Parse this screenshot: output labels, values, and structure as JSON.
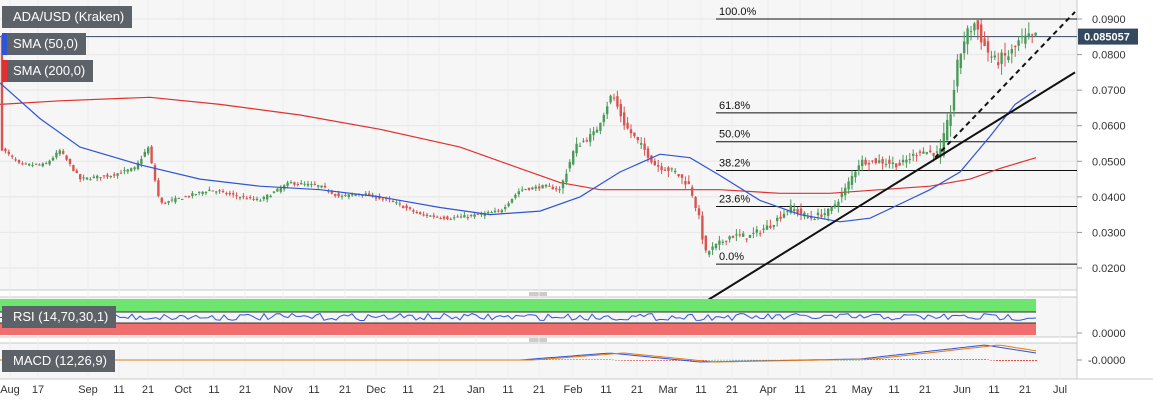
{
  "legend": {
    "main": "ADA/USD (Kraken)",
    "sma50": "SMA (50,0)",
    "sma200": "SMA (200,0)",
    "rsi": "RSI (14,70,30,1)",
    "macd": "MACD (12,26,9)"
  },
  "colors": {
    "up": "#4c9a5a",
    "down": "#d9534f",
    "sma50": "#2f54d8",
    "sma200": "#e03131",
    "current_tag": "#34485f",
    "rsi_over": "#6ee56e",
    "rsi_under": "#f06e6e",
    "label_bg": "#5d6268"
  },
  "chart_data": {
    "type": "candlestick",
    "title": "ADA/USD (Kraken)",
    "current_price": "0.085057",
    "y_ticks": [
      "0.0900",
      "0.0800",
      "0.0700",
      "0.0600",
      "0.0500",
      "0.0400",
      "0.0300",
      "0.0200"
    ],
    "ylim": [
      0.013,
      0.094
    ],
    "fib_levels": [
      {
        "label": "100.0%",
        "price": 0.09
      },
      {
        "label": "61.8%",
        "price": 0.0636
      },
      {
        "label": "50.0%",
        "price": 0.0555
      },
      {
        "label": "38.2%",
        "price": 0.0474
      },
      {
        "label": "23.6%",
        "price": 0.0373
      },
      {
        "label": "0.0%",
        "price": 0.0211
      }
    ],
    "x_ticks": [
      "Aug",
      "17",
      "Sep",
      "11",
      "21",
      "Oct",
      "11",
      "21",
      "Nov",
      "11",
      "21",
      "Dec",
      "11",
      "21",
      "Jan",
      "11",
      "21",
      "Feb",
      "11",
      "21",
      "Mar",
      "11",
      "21",
      "Apr",
      "11",
      "21",
      "May",
      "11",
      "21",
      "Jun",
      "11",
      "21",
      "Jul"
    ],
    "price_path": [
      [
        0,
        0.054
      ],
      [
        20,
        0.049
      ],
      [
        45,
        0.049
      ],
      [
        60,
        0.053
      ],
      [
        80,
        0.045
      ],
      [
        110,
        0.046
      ],
      [
        135,
        0.048
      ],
      [
        148,
        0.054
      ],
      [
        160,
        0.038
      ],
      [
        185,
        0.04
      ],
      [
        210,
        0.042
      ],
      [
        240,
        0.04
      ],
      [
        260,
        0.039
      ],
      [
        290,
        0.044
      ],
      [
        320,
        0.043
      ],
      [
        340,
        0.04
      ],
      [
        360,
        0.041
      ],
      [
        390,
        0.039
      ],
      [
        420,
        0.035
      ],
      [
        450,
        0.034
      ],
      [
        480,
        0.035
      ],
      [
        500,
        0.036
      ],
      [
        520,
        0.042
      ],
      [
        545,
        0.043
      ],
      [
        560,
        0.042
      ],
      [
        575,
        0.054
      ],
      [
        595,
        0.058
      ],
      [
        612,
        0.069
      ],
      [
        625,
        0.06
      ],
      [
        645,
        0.053
      ],
      [
        655,
        0.049
      ],
      [
        675,
        0.047
      ],
      [
        690,
        0.043
      ],
      [
        700,
        0.033
      ],
      [
        705,
        0.024
      ],
      [
        715,
        0.026
      ],
      [
        730,
        0.029
      ],
      [
        750,
        0.029
      ],
      [
        770,
        0.032
      ],
      [
        790,
        0.037
      ],
      [
        810,
        0.034
      ],
      [
        830,
        0.036
      ],
      [
        845,
        0.042
      ],
      [
        860,
        0.05
      ],
      [
        880,
        0.05
      ],
      [
        900,
        0.049
      ],
      [
        920,
        0.053
      ],
      [
        940,
        0.052
      ],
      [
        950,
        0.063
      ],
      [
        958,
        0.078
      ],
      [
        965,
        0.085
      ],
      [
        975,
        0.089
      ],
      [
        985,
        0.082
      ],
      [
        995,
        0.078
      ],
      [
        1010,
        0.08
      ],
      [
        1020,
        0.084
      ],
      [
        1036,
        0.085
      ]
    ],
    "sma50_path": [
      [
        0,
        0.072
      ],
      [
        40,
        0.062
      ],
      [
        80,
        0.054
      ],
      [
        140,
        0.049
      ],
      [
        200,
        0.045
      ],
      [
        260,
        0.043
      ],
      [
        320,
        0.042
      ],
      [
        380,
        0.04
      ],
      [
        440,
        0.037
      ],
      [
        490,
        0.035
      ],
      [
        540,
        0.036
      ],
      [
        580,
        0.04
      ],
      [
        620,
        0.047
      ],
      [
        660,
        0.052
      ],
      [
        690,
        0.051
      ],
      [
        720,
        0.046
      ],
      [
        760,
        0.039
      ],
      [
        800,
        0.035
      ],
      [
        840,
        0.033
      ],
      [
        870,
        0.034
      ],
      [
        900,
        0.038
      ],
      [
        930,
        0.042
      ],
      [
        960,
        0.047
      ],
      [
        990,
        0.057
      ],
      [
        1015,
        0.066
      ],
      [
        1036,
        0.07
      ]
    ],
    "sma200_path": [
      [
        0,
        0.066
      ],
      [
        60,
        0.067
      ],
      [
        150,
        0.068
      ],
      [
        220,
        0.066
      ],
      [
        300,
        0.063
      ],
      [
        380,
        0.059
      ],
      [
        460,
        0.054
      ],
      [
        520,
        0.048
      ],
      [
        560,
        0.044
      ],
      [
        600,
        0.042
      ],
      [
        660,
        0.042
      ],
      [
        720,
        0.042
      ],
      [
        780,
        0.041
      ],
      [
        830,
        0.041
      ],
      [
        880,
        0.042
      ],
      [
        930,
        0.043
      ],
      [
        970,
        0.045
      ],
      [
        1000,
        0.048
      ],
      [
        1036,
        0.051
      ]
    ],
    "trendlines": [
      {
        "style": "solid",
        "from": [
          708,
          0.011
        ],
        "to": [
          1075,
          0.075
        ]
      },
      {
        "style": "dashed",
        "from": [
          935,
          0.051
        ],
        "to": [
          1075,
          0.092
        ]
      }
    ],
    "rsi": {
      "upper": 70,
      "lower": 30
    },
    "macd_ticks": [
      "0.0000",
      "-0.0000"
    ]
  }
}
